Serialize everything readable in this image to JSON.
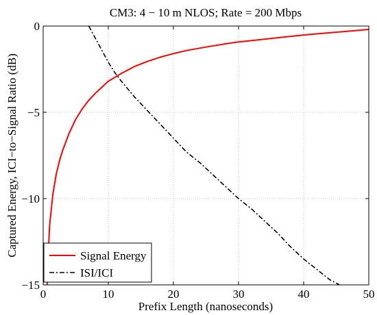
{
  "chart_data": {
    "type": "line",
    "title": "CM3: 4 − 10 m NLOS; Rate = 200 Mbps",
    "xlabel": "Prefix Length (nanoseconds)",
    "ylabel": "Captured Energy, ICI−to−Signal Ratio (dB)",
    "xlim": [
      0,
      50
    ],
    "ylim": [
      -15,
      0
    ],
    "xticks": [
      0,
      10,
      20,
      30,
      40,
      50
    ],
    "xtick_labels": [
      "0",
      "10",
      "20",
      "30",
      "40",
      "50"
    ],
    "yticks": [
      -15,
      -10,
      -5,
      0
    ],
    "ytick_labels": [
      "−15",
      "−10",
      "−5",
      "0"
    ],
    "grid": true,
    "legend_position": "bottom-left",
    "series": [
      {
        "name": "Signal Energy",
        "color": "#ff0000",
        "dash": "solid",
        "x": [
          0.6,
          0.8,
          1,
          1.5,
          2,
          2.5,
          3,
          4,
          5,
          6,
          7,
          8,
          9,
          10,
          12,
          14,
          16,
          18,
          20,
          22,
          25,
          28,
          30,
          33,
          36,
          40,
          43,
          46,
          50
        ],
        "y": [
          -15,
          -13,
          -11.5,
          -9.7,
          -8.6,
          -7.8,
          -7.2,
          -6.2,
          -5.4,
          -4.8,
          -4.3,
          -3.9,
          -3.55,
          -3.2,
          -2.75,
          -2.35,
          -2.05,
          -1.8,
          -1.6,
          -1.42,
          -1.22,
          -1.03,
          -0.92,
          -0.8,
          -0.68,
          -0.52,
          -0.42,
          -0.33,
          -0.2
        ]
      },
      {
        "name": "ISI/ICI",
        "color": "#000000",
        "dash": "dashdot",
        "x": [
          7,
          8,
          9,
          10,
          11,
          12,
          14,
          16,
          18,
          20,
          22,
          24,
          26,
          28,
          30,
          32,
          34,
          36,
          38,
          40,
          42,
          44,
          45.5
        ],
        "y": [
          0,
          -0.7,
          -1.4,
          -2.1,
          -2.7,
          -3.2,
          -4.1,
          -4.9,
          -5.7,
          -6.5,
          -7.3,
          -7.9,
          -8.6,
          -9.3,
          -10,
          -10.6,
          -11.3,
          -12,
          -12.8,
          -13.5,
          -14.1,
          -14.7,
          -15
        ]
      }
    ]
  }
}
